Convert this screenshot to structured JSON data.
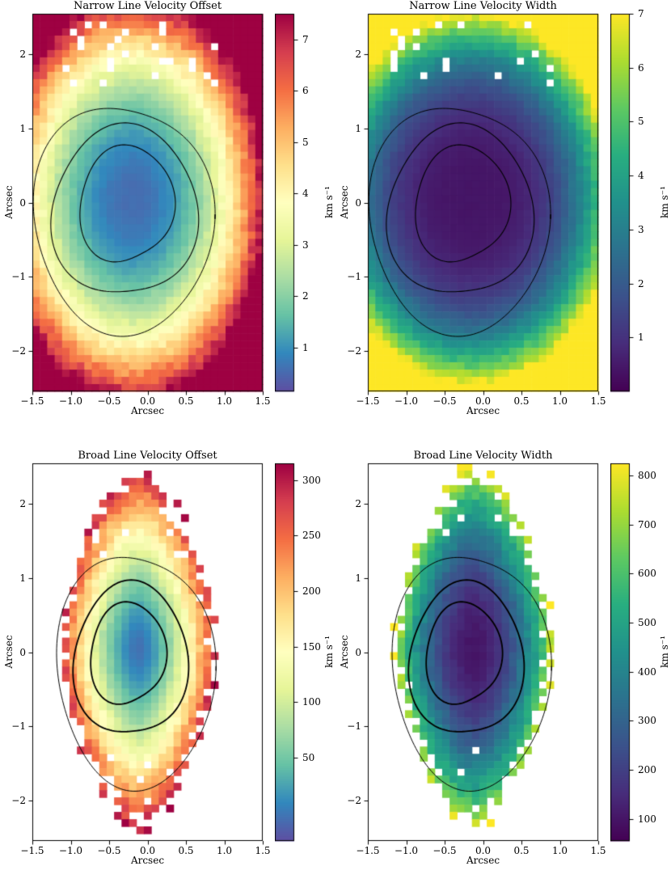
{
  "figure": {
    "background": "#ffffff"
  },
  "colormaps": {
    "spectral_r": [
      [
        0,
        "#5e4fa2"
      ],
      [
        0.1,
        "#3288bd"
      ],
      [
        0.2,
        "#66c2a5"
      ],
      [
        0.3,
        "#abdda4"
      ],
      [
        0.4,
        "#e6f598"
      ],
      [
        0.5,
        "#ffffbf"
      ],
      [
        0.6,
        "#fee08b"
      ],
      [
        0.7,
        "#fdae61"
      ],
      [
        0.8,
        "#f46d43"
      ],
      [
        0.9,
        "#d53e4f"
      ],
      [
        1,
        "#9e0142"
      ]
    ],
    "viridis": [
      [
        0,
        "#440154"
      ],
      [
        0.125,
        "#472d7b"
      ],
      [
        0.25,
        "#3b528b"
      ],
      [
        0.375,
        "#2c728e"
      ],
      [
        0.5,
        "#21918c"
      ],
      [
        0.625,
        "#28ae80"
      ],
      [
        0.75,
        "#5ec962"
      ],
      [
        0.875,
        "#addc30"
      ],
      [
        1,
        "#fde725"
      ]
    ]
  },
  "chart_data": [
    {
      "type": "heatmap",
      "title": "Narrow Line Velocity Offset",
      "xlabel": "Arcsec",
      "ylabel": "Arcsec",
      "colorbar_label": "km s⁻¹",
      "colormap": "spectral_r",
      "xlim": [
        -1.5,
        1.5
      ],
      "ylim": [
        -2.545,
        2.545
      ],
      "vmin": 0.15,
      "vmax": 7.5,
      "xticks": {
        "values": [
          -1.5,
          -1,
          -0.5,
          0,
          0.5,
          1,
          1.5
        ],
        "labels": [
          "−1.5",
          "−1.0",
          "−0.5",
          "0.0",
          "0.5",
          "1.0",
          "1.5"
        ]
      },
      "yticks": {
        "values": [
          -2,
          -1,
          0,
          1,
          2
        ],
        "labels": [
          "−2",
          "−1",
          "0",
          "1",
          "2"
        ]
      },
      "colorbar_ticks": {
        "values": [
          1,
          2,
          3,
          4,
          5,
          6,
          7
        ],
        "labels": [
          "1",
          "2",
          "3",
          "4",
          "5",
          "6",
          "7"
        ]
      },
      "grid": {
        "nx": 31,
        "ny": 52
      },
      "noise": 0.06,
      "seed": 1,
      "field": {
        "cx": -0.2,
        "cy": 0.05,
        "sx": 1.75,
        "sy": 2.75,
        "v0": 0.55,
        "amp": 7.2,
        "power": 2.2,
        "norm": 2
      },
      "mask": null,
      "speckles": [
        {
          "xmin": -1.2,
          "xmax": 0.9,
          "ymin": 1.55,
          "ymax": 2.45,
          "prob": 0.1,
          "seed": 21
        }
      ],
      "contours": [
        {
          "cx": -0.28,
          "cy": -0.02,
          "rx": 0.6,
          "ry": 0.8,
          "lw": 1.1,
          "w1": 0.05,
          "p1": 0.6,
          "w2": 0.05,
          "p2": 2.1
        },
        {
          "cx": -0.3,
          "cy": -0.12,
          "rx": 0.92,
          "ry": 1.18,
          "lw": 1.1,
          "w1": 0.04,
          "p1": 1.2,
          "w2": 0.05,
          "p2": 3.0
        },
        {
          "cx": -0.32,
          "cy": -0.22,
          "rx": 1.14,
          "ry": 1.58,
          "lw": 1.0,
          "w1": 0.04,
          "p1": 2.2,
          "w2": 0.04,
          "p2": 0.5
        }
      ]
    },
    {
      "type": "heatmap",
      "title": "Narrow Line Velocity Width",
      "xlabel": "Arcsec",
      "ylabel": "Arcsec",
      "colorbar_label": "km s⁻¹",
      "colormap": "viridis",
      "xlim": [
        -1.5,
        1.5
      ],
      "ylim": [
        -2.545,
        2.545
      ],
      "vmin": 0,
      "vmax": 7,
      "xticks": {
        "values": [
          -1.5,
          -1,
          -0.5,
          0,
          0.5,
          1,
          1.5
        ],
        "labels": [
          "−1.5",
          "−1.0",
          "−0.5",
          "0.0",
          "0.5",
          "1.0",
          "1.5"
        ]
      },
      "yticks": {
        "values": [
          -2,
          -1,
          0,
          1,
          2
        ],
        "labels": [
          "−2",
          "−1",
          "0",
          "1",
          "2"
        ]
      },
      "colorbar_ticks": {
        "values": [
          1,
          2,
          3,
          4,
          5,
          6,
          7
        ],
        "labels": [
          "1",
          "2",
          "3",
          "4",
          "5",
          "6",
          "7"
        ]
      },
      "grid": {
        "nx": 31,
        "ny": 52
      },
      "noise": 0.06,
      "seed": 2,
      "field": {
        "cx": -0.15,
        "cy": 0.05,
        "sx": 1.95,
        "sy": 2.6,
        "v0": 0.4,
        "amp": 7.6,
        "power": 3.2,
        "norm": 2
      },
      "mask": null,
      "speckles": [
        {
          "xmin": -1.2,
          "xmax": 0.9,
          "ymin": 1.55,
          "ymax": 2.45,
          "prob": 0.09,
          "seed": 33
        }
      ],
      "contours": [
        {
          "cx": -0.28,
          "cy": -0.02,
          "rx": 0.6,
          "ry": 0.8,
          "lw": 1.1,
          "w1": 0.05,
          "p1": 0.6,
          "w2": 0.05,
          "p2": 2.1
        },
        {
          "cx": -0.3,
          "cy": -0.12,
          "rx": 0.92,
          "ry": 1.18,
          "lw": 1.1,
          "w1": 0.04,
          "p1": 1.2,
          "w2": 0.05,
          "p2": 3.0
        },
        {
          "cx": -0.32,
          "cy": -0.22,
          "rx": 1.14,
          "ry": 1.58,
          "lw": 1.0,
          "w1": 0.04,
          "p1": 2.2,
          "w2": 0.04,
          "p2": 0.5
        }
      ]
    },
    {
      "type": "heatmap",
      "title": "Broad Line Velocity Offset",
      "xlabel": "Arcsec",
      "ylabel": "Arcsec",
      "colorbar_label": "km s⁻¹",
      "colormap": "spectral_r",
      "xlim": [
        -1.5,
        1.5
      ],
      "ylim": [
        -2.545,
        2.545
      ],
      "vmin": -25,
      "vmax": 315,
      "xticks": {
        "values": [
          -1.5,
          -1,
          -0.5,
          0,
          0.5,
          1,
          1.5
        ],
        "labels": [
          "−1.5",
          "−1.0",
          "−0.5",
          "0.0",
          "0.5",
          "1.0",
          "1.5"
        ]
      },
      "yticks": {
        "values": [
          -2,
          -1,
          0,
          1,
          2
        ],
        "labels": [
          "−2",
          "−1",
          "0",
          "1",
          "2"
        ]
      },
      "colorbar_ticks": {
        "values": [
          50,
          100,
          150,
          200,
          250,
          300
        ],
        "labels": [
          "50",
          "100",
          "150",
          "200",
          "250",
          "300"
        ]
      },
      "grid": {
        "nx": 31,
        "ny": 52
      },
      "noise": 0.08,
      "seed": 3,
      "field": {
        "cx": -0.12,
        "cy": 0.05,
        "sx": 1.05,
        "sy": 2.45,
        "v0": -5,
        "amp": 315,
        "power": 1.6,
        "norm": 1.7
      },
      "mask": {
        "cx": -0.12,
        "cy": 0.05,
        "rx": 1.0,
        "ry": 2.35,
        "p": 1.5,
        "jitter": 0.16,
        "seed": 7
      },
      "speckles": [
        {
          "xmin": -0.7,
          "xmax": 0.7,
          "ymin": -2.1,
          "ymax": -1.3,
          "prob": 0.05,
          "seed": 41
        },
        {
          "xmin": -0.7,
          "xmax": 0.7,
          "ymin": 1.3,
          "ymax": 2.0,
          "prob": 0.05,
          "seed": 42
        }
      ],
      "contours": [
        {
          "cx": -0.26,
          "cy": -0.02,
          "rx": 0.48,
          "ry": 0.7,
          "lw": 1.8,
          "w1": 0.05,
          "p1": 0.6,
          "w2": 0.05,
          "p2": 2.1
        },
        {
          "cx": -0.22,
          "cy": -0.1,
          "rx": 0.72,
          "ry": 1.06,
          "lw": 1.8,
          "w1": 0.04,
          "p1": 1.2,
          "w2": 0.05,
          "p2": 3.0
        },
        {
          "cx": -0.16,
          "cy": -0.25,
          "rx": 1.0,
          "ry": 1.62,
          "lw": 1.0,
          "w1": 0.04,
          "p1": 2.2,
          "w2": 0.04,
          "p2": 0.5
        }
      ]
    },
    {
      "type": "heatmap",
      "title": "Broad Line Velocity Width",
      "xlabel": "Arcsec",
      "ylabel": "Arcsec",
      "colorbar_label": "km s⁻¹",
      "colormap": "viridis",
      "xlim": [
        -1.5,
        1.5
      ],
      "ylim": [
        -2.545,
        2.545
      ],
      "vmin": 55,
      "vmax": 825,
      "xticks": {
        "values": [
          -1.5,
          -1,
          -0.5,
          0,
          0.5,
          1,
          1.5
        ],
        "labels": [
          "−1.5",
          "−1.0",
          "−0.5",
          "0.0",
          "0.5",
          "1.0",
          "1.5"
        ]
      },
      "yticks": {
        "values": [
          -2,
          -1,
          0,
          1,
          2
        ],
        "labels": [
          "−2",
          "−1",
          "0",
          "1",
          "2"
        ]
      },
      "colorbar_ticks": {
        "values": [
          100,
          200,
          300,
          400,
          500,
          600,
          700,
          800
        ],
        "labels": [
          "100",
          "200",
          "300",
          "400",
          "500",
          "600",
          "700",
          "800"
        ]
      },
      "grid": {
        "nx": 31,
        "ny": 52
      },
      "noise": 0.08,
      "seed": 4,
      "field": {
        "cx": -0.12,
        "cy": 0.05,
        "sx": 1.05,
        "sy": 2.45,
        "v0": 100,
        "amp": 680,
        "power": 2.0,
        "norm": 1.7
      },
      "mask": {
        "cx": -0.12,
        "cy": 0.05,
        "rx": 1.0,
        "ry": 2.35,
        "p": 1.5,
        "jitter": 0.16,
        "seed": 9
      },
      "speckles": [
        {
          "xmin": -0.7,
          "xmax": 0.7,
          "ymin": -2.1,
          "ymax": -1.3,
          "prob": 0.04,
          "seed": 51
        },
        {
          "xmin": -0.7,
          "xmax": 0.7,
          "ymin": 1.3,
          "ymax": 2.0,
          "prob": 0.04,
          "seed": 52
        }
      ],
      "contours": [
        {
          "cx": -0.26,
          "cy": -0.02,
          "rx": 0.48,
          "ry": 0.7,
          "lw": 1.8,
          "w1": 0.05,
          "p1": 0.6,
          "w2": 0.05,
          "p2": 2.1
        },
        {
          "cx": -0.22,
          "cy": -0.1,
          "rx": 0.72,
          "ry": 1.06,
          "lw": 1.8,
          "w1": 0.04,
          "p1": 1.2,
          "w2": 0.05,
          "p2": 3.0
        },
        {
          "cx": -0.16,
          "cy": -0.25,
          "rx": 1.0,
          "ry": 1.62,
          "lw": 1.0,
          "w1": 0.04,
          "p1": 2.2,
          "w2": 0.04,
          "p2": 0.5
        }
      ]
    }
  ]
}
